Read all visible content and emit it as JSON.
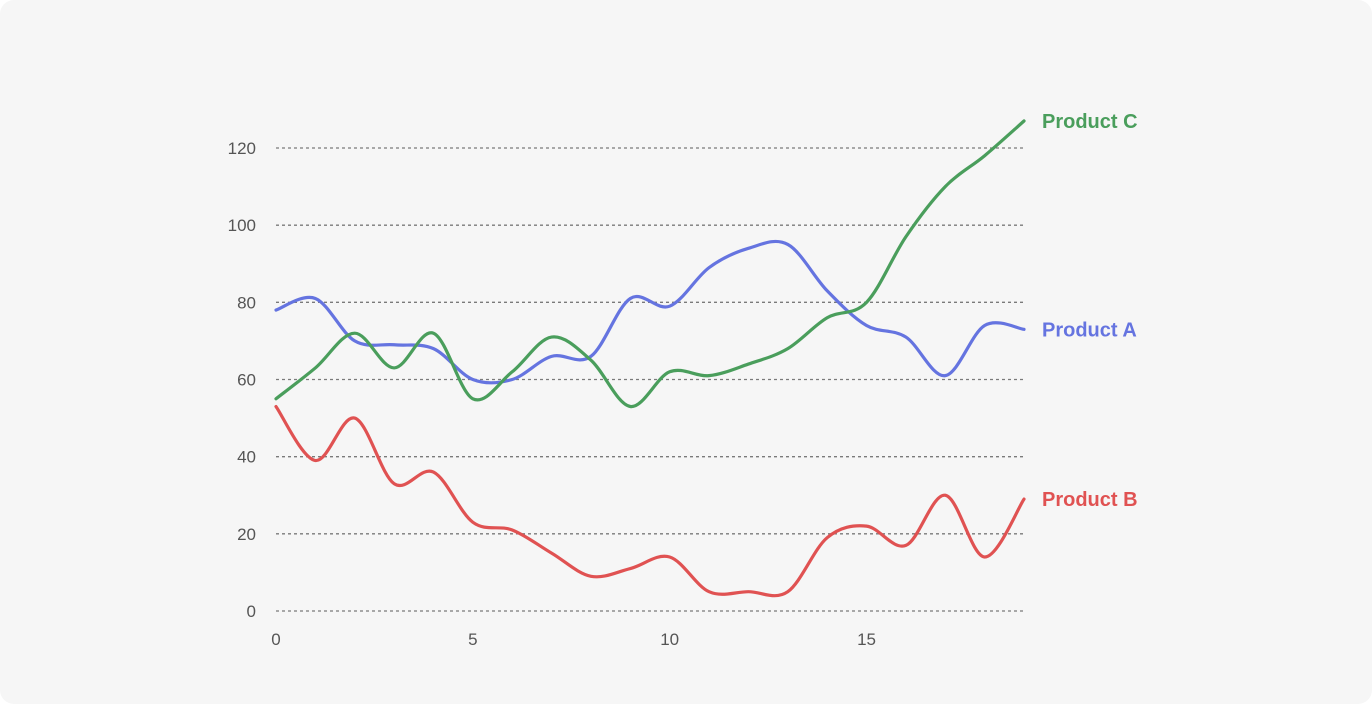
{
  "chart_data": {
    "type": "line",
    "title": "",
    "xlabel": "",
    "ylabel": "",
    "xlim": [
      0,
      19
    ],
    "ylim": [
      0,
      120
    ],
    "x_ticks": [
      0,
      5,
      10,
      15
    ],
    "y_ticks": [
      0,
      20,
      40,
      60,
      80,
      100,
      120
    ],
    "grid": "horizontal dashed",
    "legend": "inline at line ends (right)",
    "x": [
      0,
      1,
      2,
      3,
      4,
      5,
      6,
      7,
      8,
      9,
      10,
      11,
      12,
      13,
      14,
      15,
      16,
      17,
      18,
      19
    ],
    "series": [
      {
        "name": "Product A",
        "color": "#6574e0",
        "values": [
          78,
          81,
          70,
          69,
          68,
          60,
          60,
          66,
          66,
          81,
          79,
          89,
          94,
          95,
          83,
          74,
          71,
          61,
          74,
          73
        ]
      },
      {
        "name": "Product B",
        "color": "#e05252",
        "values": [
          53,
          39,
          50,
          33,
          36,
          23,
          21,
          15,
          9,
          11,
          14,
          5,
          5,
          5,
          19,
          22,
          17,
          30,
          14,
          29
        ]
      },
      {
        "name": "Product C",
        "color": "#4a9e5c",
        "values": [
          55,
          63,
          72,
          63,
          72,
          55,
          62,
          71,
          65,
          53,
          62,
          61,
          64,
          68,
          76,
          80,
          97,
          110,
          118,
          127
        ]
      }
    ]
  }
}
